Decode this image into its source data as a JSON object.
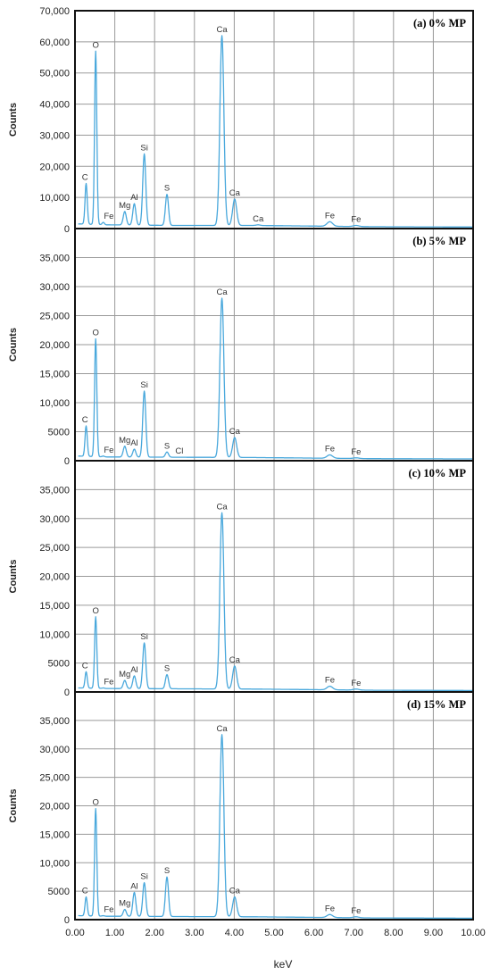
{
  "figure": {
    "xlabel": "keV",
    "line_color": "#49a8dc",
    "grid_color": "#9a9a9a",
    "border_color": "#111111"
  },
  "chart_data": [
    {
      "type": "line",
      "title": "(a) 0% MP",
      "xlabel": "",
      "ylabel": "Counts",
      "xlim": [
        0,
        10
      ],
      "ylim": [
        0,
        70000
      ],
      "yticks": [
        0,
        10000,
        20000,
        30000,
        40000,
        50000,
        60000,
        70000
      ],
      "ytick_labels": [
        "0",
        "10,000",
        "20,000",
        "30,000",
        "40,000",
        "50,000",
        "60,000",
        "70,000"
      ],
      "grid": true,
      "baseline": [
        [
          0.1,
          1500
        ],
        [
          0.8,
          1200
        ],
        [
          2.5,
          1000
        ],
        [
          4.5,
          1000
        ],
        [
          6.0,
          800
        ],
        [
          7.5,
          600
        ],
        [
          10.0,
          500
        ]
      ],
      "peaks": [
        {
          "element": "C",
          "x": 0.28,
          "y": 14500,
          "label_x": 0.25
        },
        {
          "element": "O",
          "x": 0.52,
          "y": 57000,
          "label_x": 0.52
        },
        {
          "element": "Fe",
          "x": 0.71,
          "y": 2000,
          "label_x": 0.85
        },
        {
          "element": "Mg",
          "x": 1.25,
          "y": 5500,
          "label_x": 1.25
        },
        {
          "element": "Al",
          "x": 1.49,
          "y": 8000,
          "label_x": 1.49
        },
        {
          "element": "Si",
          "x": 1.74,
          "y": 24000,
          "label_x": 1.74
        },
        {
          "element": "S",
          "x": 2.31,
          "y": 11000,
          "label_x": 2.31
        },
        {
          "element": "Ca",
          "x": 3.69,
          "y": 62000,
          "label_x": 3.69
        },
        {
          "element": "Ca",
          "x": 4.01,
          "y": 9500,
          "label_x": 4.01
        },
        {
          "element": "Ca",
          "x": 4.6,
          "y": 1200,
          "label_x": 4.6
        },
        {
          "element": "Fe",
          "x": 6.4,
          "y": 2200,
          "label_x": 6.4
        },
        {
          "element": "Fe",
          "x": 7.06,
          "y": 1000,
          "label_x": 7.06
        }
      ]
    },
    {
      "type": "line",
      "title": "(b) 5% MP",
      "xlabel": "",
      "ylabel": "Counts",
      "xlim": [
        0,
        10
      ],
      "ylim": [
        0,
        40000
      ],
      "yticks": [
        0,
        5000,
        10000,
        15000,
        20000,
        25000,
        30000,
        35000
      ],
      "ytick_labels": [
        "0",
        "5000",
        "10,000",
        "15,000",
        "20,000",
        "25,000",
        "30,000",
        "35,000"
      ],
      "grid": true,
      "baseline": [
        [
          0.1,
          800
        ],
        [
          0.8,
          650
        ],
        [
          2.5,
          600
        ],
        [
          4.5,
          550
        ],
        [
          6.0,
          450
        ],
        [
          7.5,
          350
        ],
        [
          10.0,
          300
        ]
      ],
      "peaks": [
        {
          "element": "C",
          "x": 0.28,
          "y": 6000,
          "label_x": 0.25
        },
        {
          "element": "O",
          "x": 0.52,
          "y": 21000,
          "label_x": 0.52
        },
        {
          "element": "Fe",
          "x": 0.71,
          "y": 800,
          "label_x": 0.85
        },
        {
          "element": "Mg",
          "x": 1.25,
          "y": 2500,
          "label_x": 1.25
        },
        {
          "element": "Al",
          "x": 1.49,
          "y": 2000,
          "label_x": 1.49
        },
        {
          "element": "Si",
          "x": 1.74,
          "y": 12000,
          "label_x": 1.74
        },
        {
          "element": "S",
          "x": 2.31,
          "y": 1500,
          "label_x": 2.31
        },
        {
          "element": "Cl",
          "x": 2.62,
          "y": 600,
          "label_x": 2.62
        },
        {
          "element": "Ca",
          "x": 3.69,
          "y": 28000,
          "label_x": 3.69
        },
        {
          "element": "Ca",
          "x": 4.01,
          "y": 4000,
          "label_x": 4.01
        },
        {
          "element": "Fe",
          "x": 6.4,
          "y": 1000,
          "label_x": 6.4
        },
        {
          "element": "Fe",
          "x": 7.06,
          "y": 500,
          "label_x": 7.06
        }
      ]
    },
    {
      "type": "line",
      "title": "(c) 10% MP",
      "xlabel": "",
      "ylabel": "Counts",
      "xlim": [
        0,
        10
      ],
      "ylim": [
        0,
        40000
      ],
      "yticks": [
        0,
        5000,
        10000,
        15000,
        20000,
        25000,
        30000,
        35000
      ],
      "ytick_labels": [
        "0",
        "5000",
        "10,000",
        "15,000",
        "20,000",
        "25,000",
        "30,000",
        "35,000"
      ],
      "grid": true,
      "baseline": [
        [
          0.1,
          700
        ],
        [
          0.8,
          600
        ],
        [
          2.5,
          550
        ],
        [
          4.5,
          500
        ],
        [
          6.0,
          400
        ],
        [
          7.5,
          300
        ],
        [
          10.0,
          250
        ]
      ],
      "peaks": [
        {
          "element": "C",
          "x": 0.28,
          "y": 3500,
          "label_x": 0.25
        },
        {
          "element": "O",
          "x": 0.52,
          "y": 13000,
          "label_x": 0.52
        },
        {
          "element": "Fe",
          "x": 0.71,
          "y": 700,
          "label_x": 0.85
        },
        {
          "element": "Mg",
          "x": 1.25,
          "y": 2000,
          "label_x": 1.25
        },
        {
          "element": "Al",
          "x": 1.49,
          "y": 2800,
          "label_x": 1.49
        },
        {
          "element": "Si",
          "x": 1.74,
          "y": 8500,
          "label_x": 1.74
        },
        {
          "element": "S",
          "x": 2.31,
          "y": 3000,
          "label_x": 2.31
        },
        {
          "element": "Ca",
          "x": 3.69,
          "y": 31000,
          "label_x": 3.69
        },
        {
          "element": "Ca",
          "x": 4.01,
          "y": 4500,
          "label_x": 4.01
        },
        {
          "element": "Fe",
          "x": 6.4,
          "y": 1000,
          "label_x": 6.4
        },
        {
          "element": "Fe",
          "x": 7.06,
          "y": 500,
          "label_x": 7.06
        }
      ]
    },
    {
      "type": "line",
      "title": "(d) 15% MP",
      "xlabel": "",
      "ylabel": "Counts",
      "xlim": [
        0,
        10
      ],
      "ylim": [
        0,
        40000
      ],
      "yticks": [
        0,
        5000,
        10000,
        15000,
        20000,
        25000,
        30000,
        35000
      ],
      "ytick_labels": [
        "0",
        "5000",
        "10,000",
        "15,000",
        "20,000",
        "25,000",
        "30,000",
        "35,000"
      ],
      "xticks": [
        0,
        1,
        2,
        3,
        4,
        5,
        6,
        7,
        8,
        9,
        10
      ],
      "xtick_labels": [
        "0.00",
        "1.00",
        "2.00",
        "3.00",
        "4.00",
        "5.00",
        "6.00",
        "7.00",
        "8.00",
        "9.00",
        "10.00"
      ],
      "grid": true,
      "baseline": [
        [
          0.1,
          700
        ],
        [
          0.8,
          600
        ],
        [
          2.5,
          550
        ],
        [
          4.5,
          500
        ],
        [
          6.0,
          400
        ],
        [
          7.5,
          300
        ],
        [
          10.0,
          250
        ]
      ],
      "peaks": [
        {
          "element": "C",
          "x": 0.28,
          "y": 4000,
          "label_x": 0.25
        },
        {
          "element": "O",
          "x": 0.52,
          "y": 19500,
          "label_x": 0.52
        },
        {
          "element": "Fe",
          "x": 0.71,
          "y": 700,
          "label_x": 0.85
        },
        {
          "element": "Mg",
          "x": 1.25,
          "y": 1800,
          "label_x": 1.25
        },
        {
          "element": "Al",
          "x": 1.49,
          "y": 4800,
          "label_x": 1.49
        },
        {
          "element": "Si",
          "x": 1.74,
          "y": 6500,
          "label_x": 1.74
        },
        {
          "element": "S",
          "x": 2.31,
          "y": 7500,
          "label_x": 2.31
        },
        {
          "element": "Ca",
          "x": 3.69,
          "y": 32500,
          "label_x": 3.69
        },
        {
          "element": "Ca",
          "x": 4.01,
          "y": 4000,
          "label_x": 4.01
        },
        {
          "element": "Fe",
          "x": 6.4,
          "y": 900,
          "label_x": 6.4
        },
        {
          "element": "Fe",
          "x": 7.06,
          "y": 500,
          "label_x": 7.06
        }
      ]
    }
  ]
}
